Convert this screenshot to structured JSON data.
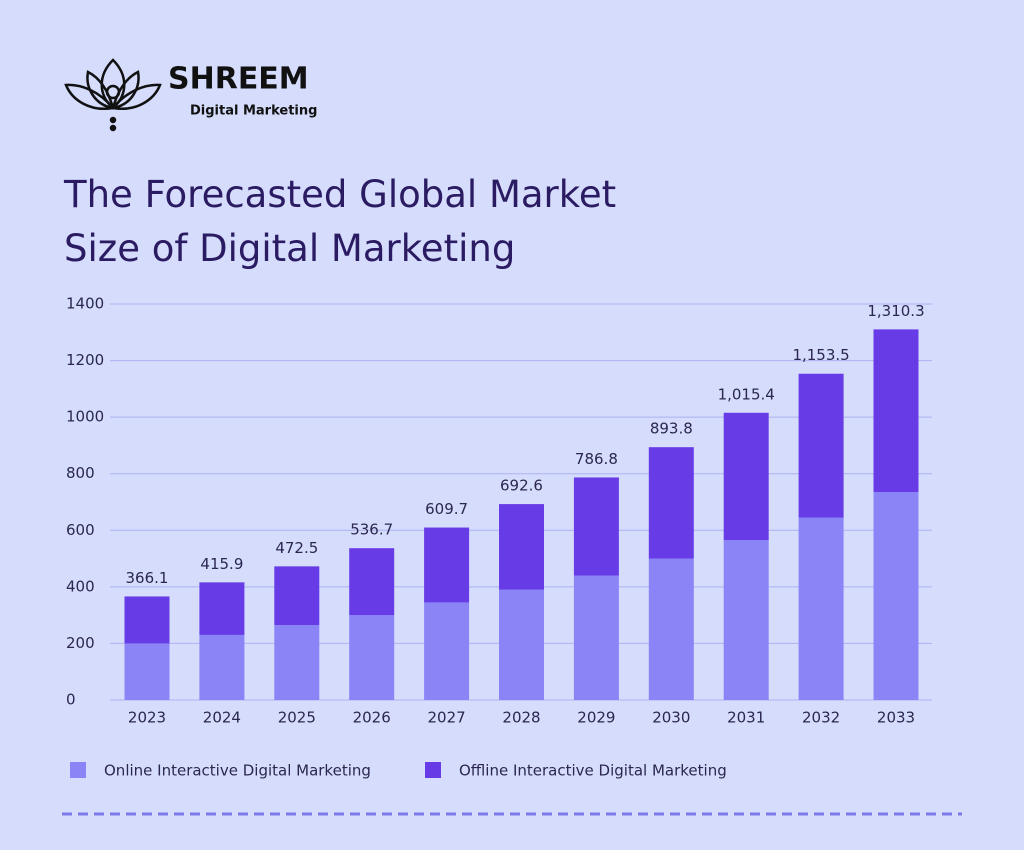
{
  "header": {
    "brand": "SHREEM",
    "tagline": "Digital Marketing"
  },
  "chart_data": {
    "type": "stacked-bar",
    "title": "The Forecasted Global Market Size of Digital Marketing",
    "categories": [
      "2023",
      "2024",
      "2025",
      "2026",
      "2027",
      "2028",
      "2029",
      "2030",
      "2031",
      "2032",
      "2033"
    ],
    "series": [
      {
        "name": "Online Interactive Digital Marketing",
        "color": "#8a84f7",
        "values": [
          200,
          230,
          265,
          300,
          345,
          390,
          440,
          500,
          565,
          645,
          735
        ]
      },
      {
        "name": "Offline Interactive Digital Marketing",
        "color": "#673ce6",
        "values": [
          166.1,
          185.9,
          207.5,
          236.7,
          264.7,
          302.6,
          346.8,
          393.8,
          450.4,
          508.5,
          575.3
        ]
      }
    ],
    "total_labels": [
      "366.1",
      "415.9",
      "472.5",
      "536.7",
      "609.7",
      "692.6",
      "786.8",
      "893.8",
      "1,015.4",
      "1,153.5",
      "1,310.3"
    ],
    "ylim": [
      0,
      1400
    ],
    "yticks": [
      0,
      200,
      400,
      600,
      800,
      1000,
      1200,
      1400
    ],
    "grid": true
  }
}
